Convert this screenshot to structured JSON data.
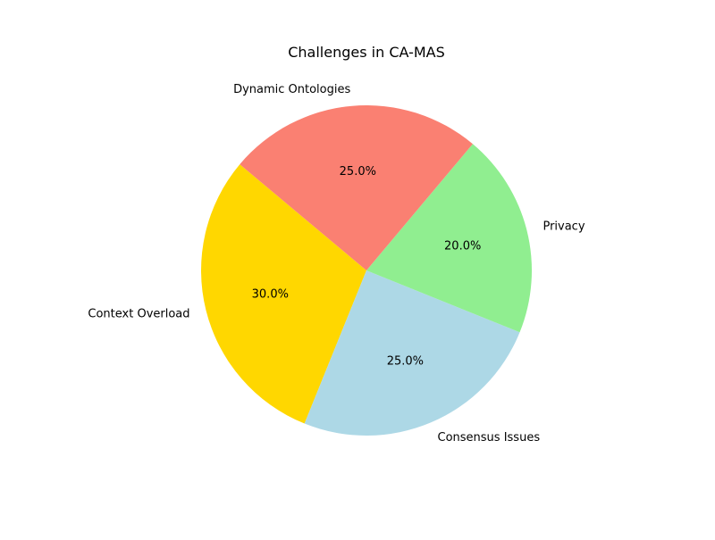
{
  "chart_data": {
    "type": "pie",
    "title": "Challenges in CA-MAS",
    "categories": [
      "Context Overload",
      "Consensus Issues",
      "Privacy",
      "Dynamic Ontologies"
    ],
    "values": [
      30,
      25,
      20,
      25
    ],
    "percent_labels": [
      "30.0%",
      "25.0%",
      "20.0%",
      "25.0%"
    ],
    "colors": [
      "#ffd700",
      "#add8e6",
      "#90ee90",
      "#fa8072"
    ],
    "start_angle_deg": 140,
    "direction": "counterclockwise",
    "legend": "none"
  }
}
